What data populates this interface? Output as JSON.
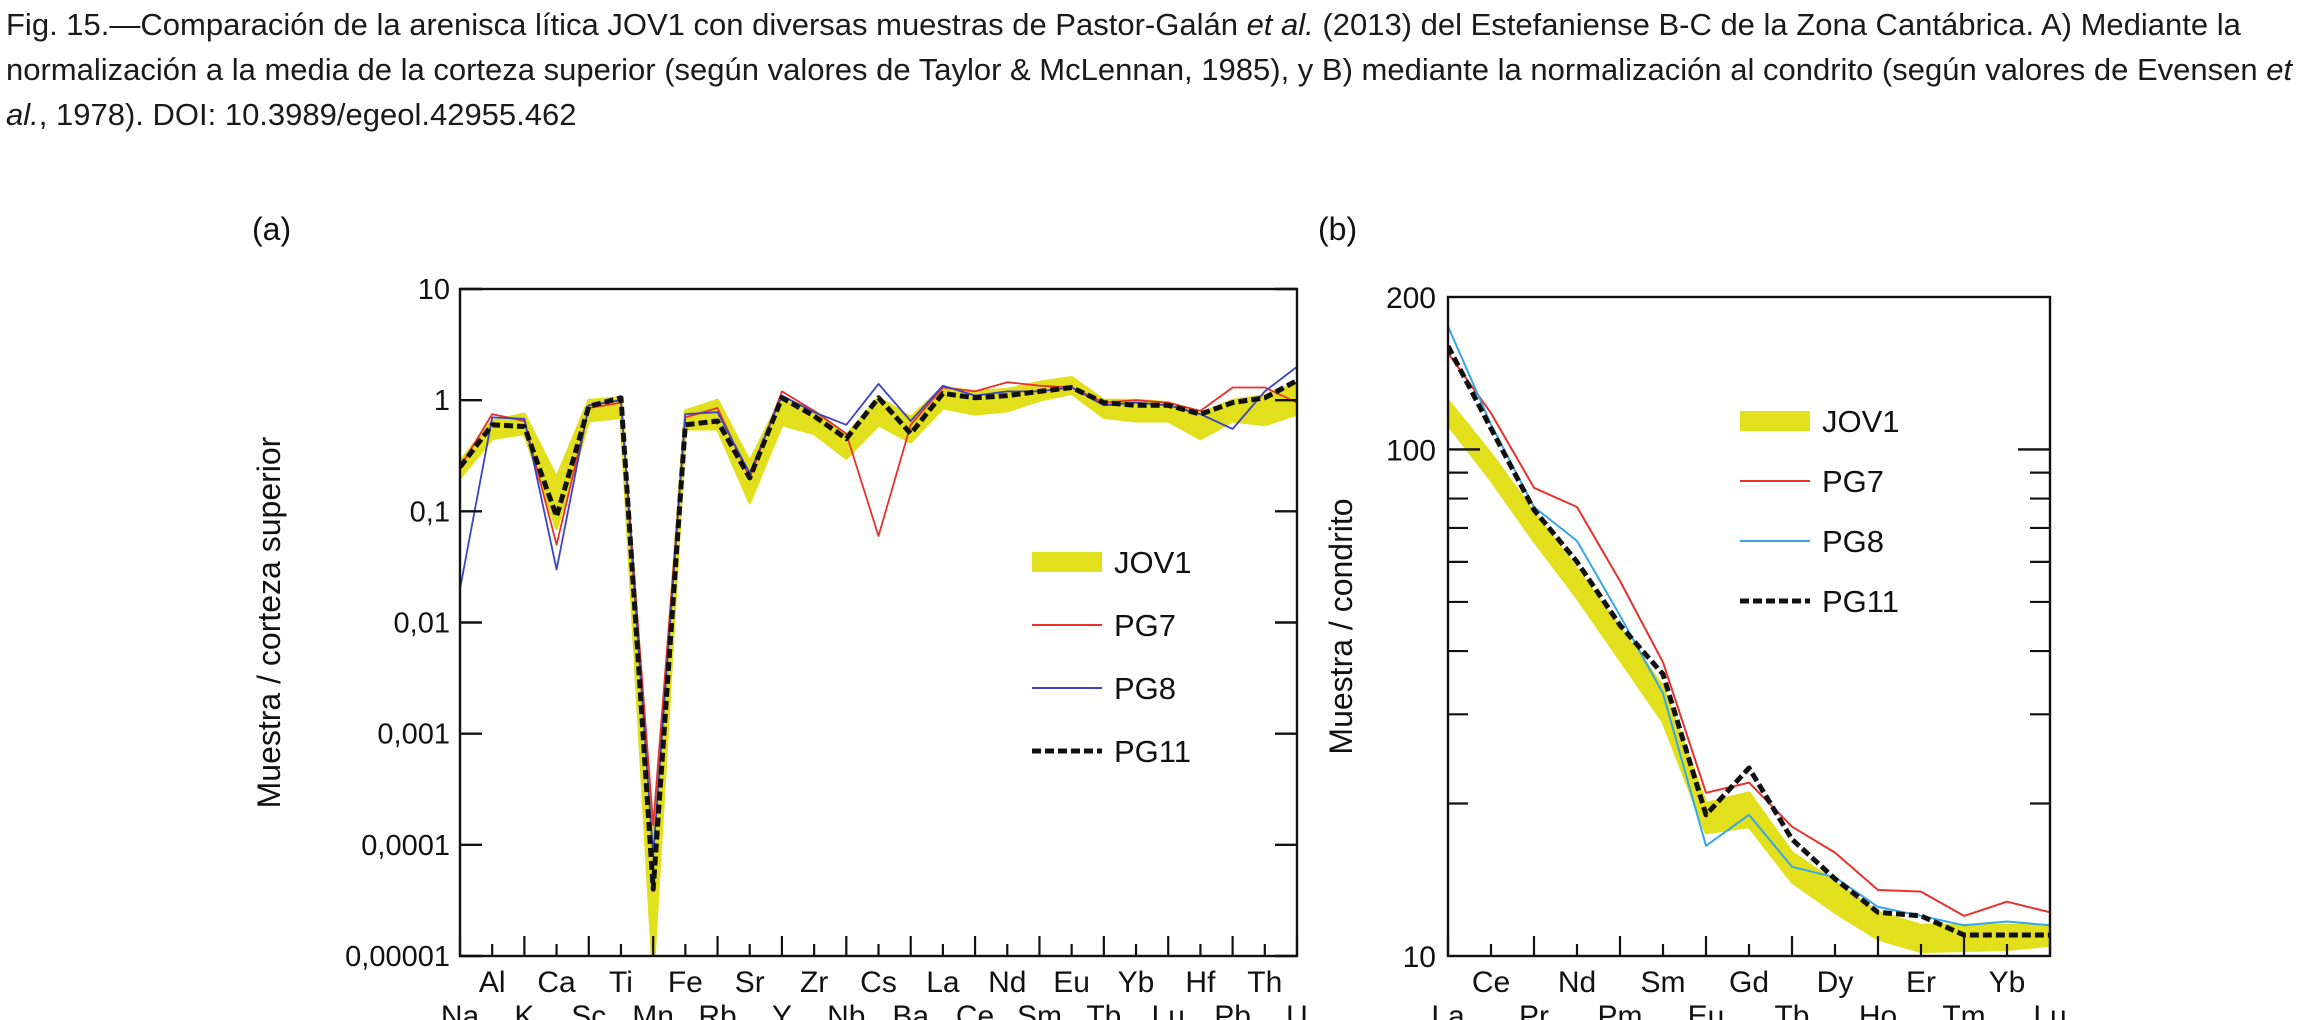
{
  "caption": {
    "parts": [
      {
        "text": "Fig. 15.—Comparación de la arenisca lítica JOV1 con diversas muestras de Pastor-Galán ",
        "italic": false
      },
      {
        "text": "et al.",
        "italic": true
      },
      {
        "text": " (2013) del Estefaniense B-C de la Zona Cantábrica. A) Mediante la normalización a la media de la corteza superior (según valores de Taylor & McLennan, 1985), y B) mediante la normalización al condrito (según valores de Evensen ",
        "italic": false
      },
      {
        "text": "et al.",
        "italic": true
      },
      {
        "text": ", 1978). DOI: 10.3989/egeol.42955.462",
        "italic": false
      }
    ]
  },
  "colors": {
    "JOV1": "#e2df1c",
    "PG7": "#e8312b",
    "PG8_a": "#3a43c8",
    "PG8_b": "#36a7e6",
    "PG11": "#111111"
  },
  "chart_data": [
    {
      "type": "line",
      "panel_label": "(a)",
      "ylabel": "Muestra / corteza superior",
      "yscale": "log",
      "ylim": [
        1e-05,
        10
      ],
      "ytick_labels": [
        "0,00001",
        "0,0001",
        "0,001",
        "0,01",
        "0,1",
        "1",
        "10"
      ],
      "categories": [
        "Na",
        "Al",
        "K",
        "Ca",
        "Sc",
        "Ti",
        "Mn",
        "Fe",
        "Rb",
        "Sr",
        "Y",
        "Zr",
        "Nb",
        "Cs",
        "Ba",
        "La",
        "Ce",
        "Nd",
        "Sm",
        "Eu",
        "Tb",
        "Yb",
        "Lu",
        "Hf",
        "Pb",
        "Th",
        "U"
      ],
      "legend_position": "center-right",
      "series": [
        {
          "name": "JOV1",
          "style": "band",
          "upper": [
            0.28,
            0.65,
            0.75,
            0.2,
            1.0,
            1.05,
            0.0001,
            0.8,
            1.0,
            0.28,
            1.05,
            0.8,
            0.48,
            1.05,
            0.7,
            1.3,
            1.2,
            1.25,
            1.45,
            1.6,
            1.0,
            1.0,
            0.95,
            0.75,
            1.0,
            1.1,
            1.4
          ],
          "lower": [
            0.2,
            0.45,
            0.5,
            0.07,
            0.65,
            0.7,
            7e-06,
            0.55,
            0.55,
            0.12,
            0.6,
            0.5,
            0.3,
            0.6,
            0.42,
            0.85,
            0.75,
            0.8,
            1.0,
            1.15,
            0.7,
            0.65,
            0.65,
            0.45,
            0.65,
            0.6,
            0.75
          ]
        },
        {
          "name": "PG7",
          "style": "thin",
          "values": [
            0.25,
            0.75,
            0.65,
            0.05,
            0.85,
            0.95,
            0.00015,
            0.7,
            0.85,
            0.2,
            1.2,
            0.8,
            0.5,
            0.06,
            0.6,
            1.3,
            1.2,
            1.45,
            1.35,
            1.3,
            0.95,
            1.0,
            0.95,
            0.8,
            1.3,
            1.3,
            0.95
          ]
        },
        {
          "name": "PG8",
          "style": "thin",
          "values": [
            0.02,
            0.7,
            0.68,
            0.03,
            0.9,
            1.0,
            8e-05,
            0.75,
            0.78,
            0.22,
            1.1,
            0.78,
            0.6,
            1.4,
            0.65,
            1.35,
            1.1,
            1.2,
            1.2,
            1.3,
            0.9,
            0.95,
            0.9,
            0.75,
            0.55,
            1.2,
            2.0
          ]
        },
        {
          "name": "PG11",
          "style": "dashed",
          "values": [
            0.25,
            0.6,
            0.58,
            0.09,
            0.88,
            1.05,
            4e-05,
            0.6,
            0.65,
            0.2,
            1.05,
            0.72,
            0.45,
            1.05,
            0.5,
            1.15,
            1.05,
            1.1,
            1.2,
            1.3,
            0.95,
            0.9,
            0.9,
            0.75,
            0.95,
            1.05,
            1.5
          ]
        }
      ]
    },
    {
      "type": "line",
      "panel_label": "(b)",
      "ylabel": "Muestra / condrito",
      "yscale": "log",
      "ylim": [
        10,
        200
      ],
      "ytick_labels": [
        "10",
        "100",
        "200"
      ],
      "categories": [
        "La",
        "Ce",
        "Pr",
        "Nd",
        "Pm",
        "Sm",
        "Eu",
        "Gd",
        "Tb",
        "Dy",
        "Ho",
        "Er",
        "Tm",
        "Yb",
        "Lu"
      ],
      "legend_position": "top-right",
      "series": [
        {
          "name": "JOV1",
          "style": "band",
          "upper": [
            125,
            98,
            75,
            58,
            44,
            34,
            20,
            21,
            16,
            14,
            12.2,
            11.5,
            11,
            11.5,
            11.5
          ],
          "lower": [
            112,
            87,
            66,
            51,
            38,
            29,
            17.5,
            18,
            14,
            12.2,
            10.8,
            10.2,
            9.8,
            10.3,
            10.5
          ],
          "missing": [
            null,
            null,
            null,
            null,
            true,
            null,
            null,
            null,
            null,
            null,
            null,
            null,
            true,
            null,
            null
          ]
        },
        {
          "name": "PG7",
          "style": "thin",
          "values": [
            155,
            118,
            84,
            77,
            55,
            38,
            21,
            22,
            18,
            16,
            13.5,
            13.4,
            12,
            12.8,
            12.2
          ]
        },
        {
          "name": "PG8",
          "style": "thin",
          "values": [
            175,
            112,
            77,
            66,
            47,
            33,
            16.5,
            19,
            15,
            14.3,
            12.5,
            12,
            11.5,
            11.7,
            11.5
          ]
        },
        {
          "name": "PG11",
          "style": "dashed",
          "values": [
            160,
            110,
            76,
            60,
            45,
            36,
            19,
            23.5,
            17,
            14.2,
            12.2,
            12,
            11,
            11,
            11
          ]
        }
      ]
    }
  ]
}
